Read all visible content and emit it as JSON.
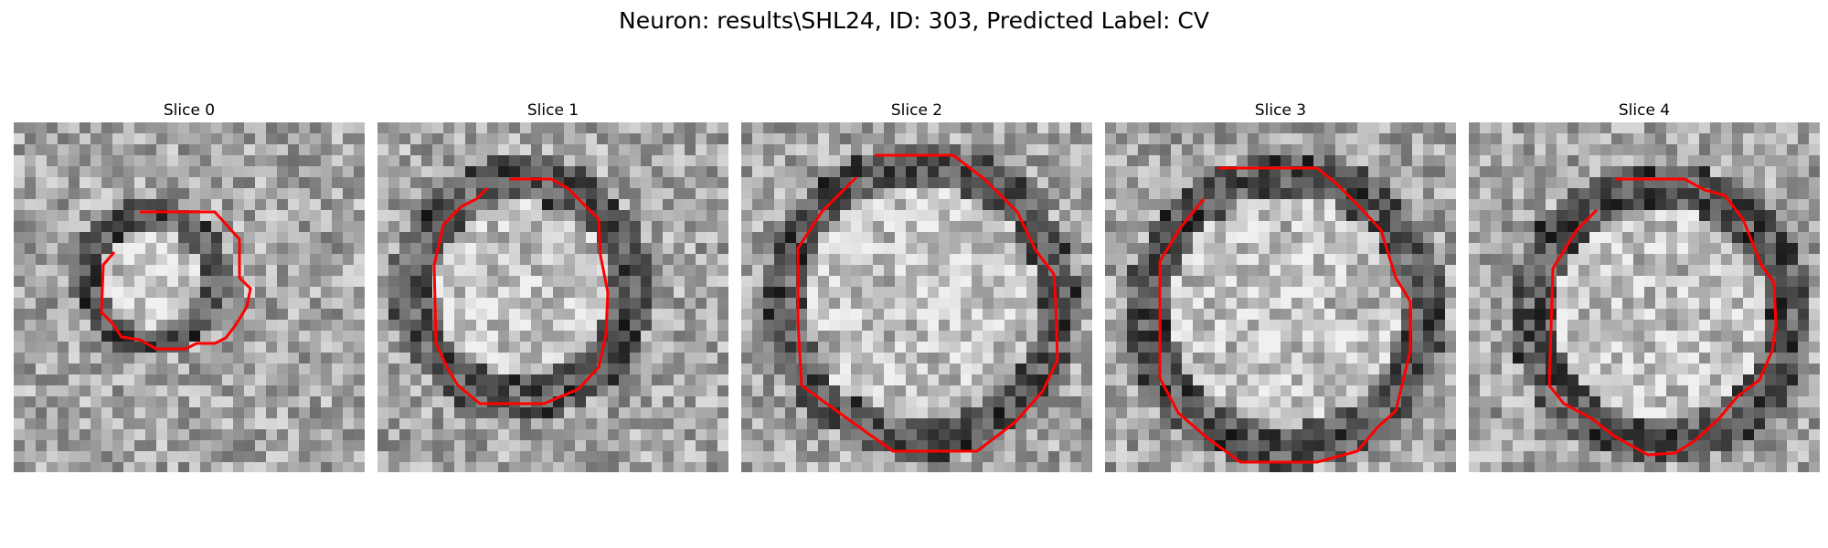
{
  "figure": {
    "title": "Neuron: results\\SHL24, ID: 303, Predicted Label: CV"
  },
  "slices": [
    {
      "title": "Slice 0",
      "outline_color": "#ff0000",
      "content": "grayscale microscopy patch with a small red boundary contour"
    },
    {
      "title": "Slice 1",
      "outline_color": "#ff0000",
      "content": "grayscale microscopy patch with a red boundary contour"
    },
    {
      "title": "Slice 2",
      "outline_color": "#ff0000",
      "content": "grayscale microscopy patch with a large red boundary contour"
    },
    {
      "title": "Slice 3",
      "outline_color": "#ff0000",
      "content": "grayscale microscopy patch with a large red boundary contour"
    },
    {
      "title": "Slice 4",
      "outline_color": "#ff0000",
      "content": "grayscale microscopy patch with a red boundary contour"
    }
  ]
}
